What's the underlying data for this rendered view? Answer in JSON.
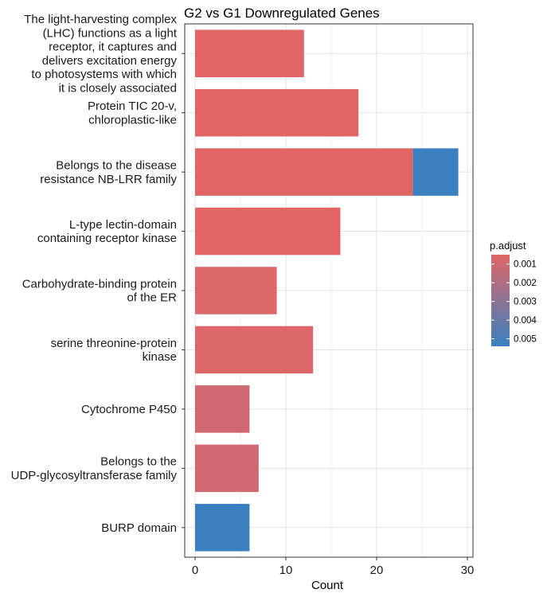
{
  "chart_data": {
    "type": "bar",
    "orientation": "horizontal",
    "title": "G2 vs G1 Downregulated Genes",
    "xlabel": "Count",
    "ylabel": "",
    "xlim": [
      0,
      30
    ],
    "x_ticks": [
      0,
      10,
      20,
      30
    ],
    "grid": true,
    "legend": {
      "title": "p.adjust",
      "placement": "right",
      "colorbar_ticks": [
        "0.001",
        "0.002",
        "0.003",
        "0.004",
        "0.005"
      ],
      "tick_values": [
        0.001,
        0.002,
        0.003,
        0.004,
        0.005
      ],
      "range": [
        0.0005,
        0.0054
      ],
      "low_color": "#e06666",
      "high_color": "#3a7fbf"
    },
    "categories": [
      [
        "The light-harvesting complex",
        "(LHC) functions as a light",
        "receptor, it captures and",
        "delivers excitation energy",
        "to photosystems with which",
        "it is closely associated"
      ],
      [
        "Protein TIC 20-v,",
        "chloroplastic-like"
      ],
      [
        "Belongs to the disease",
        "resistance NB-LRR family"
      ],
      [
        "L-type lectin-domain",
        "containing receptor kinase"
      ],
      [
        "Carbohydrate-binding protein",
        "of the ER"
      ],
      [
        "serine threonine-protein",
        "kinase"
      ],
      [
        "Cytochrome P450"
      ],
      [
        "Belongs to the",
        "UDP-glycosyltransferase family"
      ],
      [
        "BURP domain"
      ]
    ],
    "bars": [
      {
        "segments": [
          {
            "count": 12,
            "p_adjust": 0.0005
          }
        ]
      },
      {
        "segments": [
          {
            "count": 18,
            "p_adjust": 0.0005
          }
        ]
      },
      {
        "segments": [
          {
            "count": 24,
            "p_adjust": 0.0005
          },
          {
            "count": 5,
            "p_adjust": 0.0054
          }
        ]
      },
      {
        "segments": [
          {
            "count": 16,
            "p_adjust": 0.0005
          }
        ]
      },
      {
        "segments": [
          {
            "count": 9,
            "p_adjust": 0.0006
          }
        ]
      },
      {
        "segments": [
          {
            "count": 13,
            "p_adjust": 0.0006
          }
        ]
      },
      {
        "segments": [
          {
            "count": 6,
            "p_adjust": 0.001
          }
        ]
      },
      {
        "segments": [
          {
            "count": 7,
            "p_adjust": 0.001
          }
        ]
      },
      {
        "segments": [
          {
            "count": 6,
            "p_adjust": 0.0054
          }
        ]
      }
    ]
  }
}
